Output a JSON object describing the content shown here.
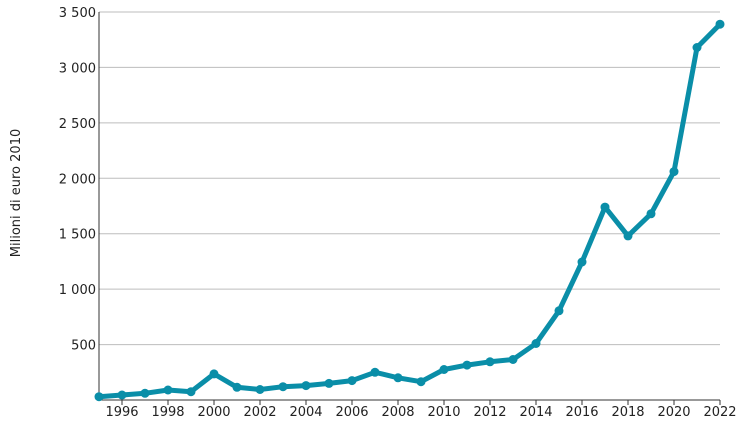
{
  "chart_data": {
    "type": "line",
    "ylabel": "Milioni di euro 2010",
    "xlabel": "",
    "xlim": [
      1995,
      2022
    ],
    "ylim": [
      0,
      3500
    ],
    "yticks": [
      {
        "value": 500,
        "label": "500"
      },
      {
        "value": 1000,
        "label": "1 000"
      },
      {
        "value": 1500,
        "label": "1 500"
      },
      {
        "value": 2000,
        "label": "2 000"
      },
      {
        "value": 2500,
        "label": "2 500"
      },
      {
        "value": 3000,
        "label": "3 000"
      },
      {
        "value": 3500,
        "label": "3 500"
      }
    ],
    "xticks": [
      {
        "value": 1996,
        "label": "1996"
      },
      {
        "value": 1998,
        "label": "1998"
      },
      {
        "value": 2000,
        "label": "2000"
      },
      {
        "value": 2002,
        "label": "2002"
      },
      {
        "value": 2004,
        "label": "2004"
      },
      {
        "value": 2006,
        "label": "2006"
      },
      {
        "value": 2008,
        "label": "2008"
      },
      {
        "value": 2010,
        "label": "2010"
      },
      {
        "value": 2012,
        "label": "2012"
      },
      {
        "value": 2014,
        "label": "2014"
      },
      {
        "value": 2016,
        "label": "2016"
      },
      {
        "value": 2018,
        "label": "2018"
      },
      {
        "value": 2020,
        "label": "2020"
      },
      {
        "value": 2022,
        "label": "2022"
      }
    ],
    "grid": "horizontal",
    "color": "#0a8ea8",
    "x": [
      1995,
      1996,
      1997,
      1998,
      1999,
      2000,
      2001,
      2002,
      2003,
      2004,
      2005,
      2006,
      2007,
      2008,
      2009,
      2010,
      2011,
      2012,
      2013,
      2014,
      2015,
      2016,
      2017,
      2018,
      2019,
      2020,
      2021,
      2022
    ],
    "values": [
      30,
      45,
      60,
      90,
      75,
      235,
      115,
      95,
      120,
      130,
      150,
      175,
      250,
      200,
      165,
      275,
      315,
      345,
      365,
      510,
      805,
      1245,
      1740,
      1480,
      1680,
      2060,
      3180,
      3390
    ]
  }
}
